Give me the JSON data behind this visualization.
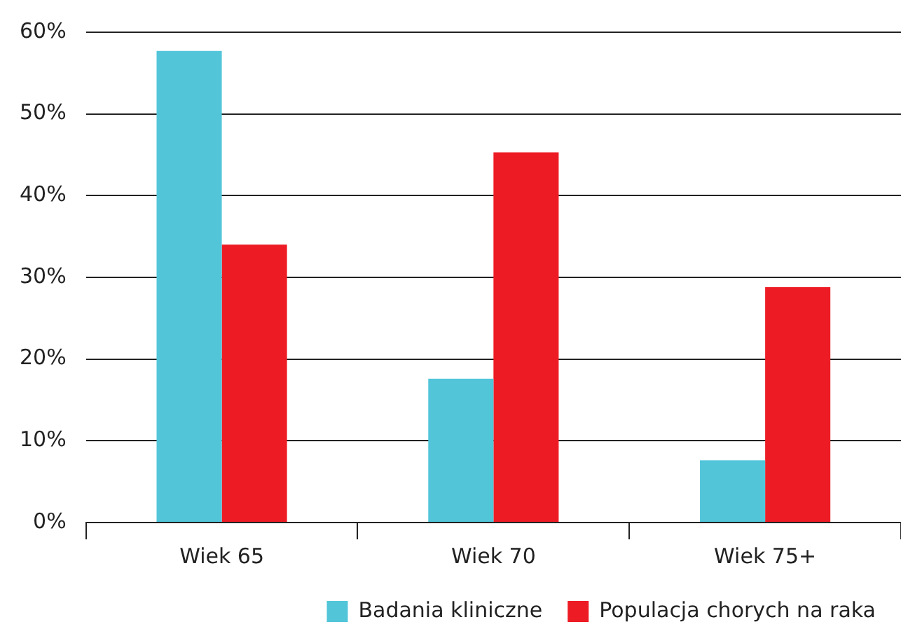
{
  "chart_data": {
    "type": "bar",
    "categories": [
      "Wiek 65",
      "Wiek 70",
      "Wiek 75+"
    ],
    "series": [
      {
        "name": "Badania kliniczne",
        "color": "#52c5d9",
        "values": [
          57.7,
          17.6,
          7.6
        ]
      },
      {
        "name": "Populacja chorych na raka",
        "color": "#ed1c24",
        "values": [
          34,
          45.3,
          28.8
        ]
      }
    ],
    "ylim": [
      0,
      60
    ],
    "yticks": [
      {
        "value": 0,
        "label": "0%"
      },
      {
        "value": 10,
        "label": "10%"
      },
      {
        "value": 20,
        "label": "20%"
      },
      {
        "value": 30,
        "label": "30%"
      },
      {
        "value": 40,
        "label": "40%"
      },
      {
        "value": 50,
        "label": "50%"
      },
      {
        "value": 60,
        "label": "60%"
      }
    ],
    "grid": "y",
    "legend": "bottom"
  }
}
